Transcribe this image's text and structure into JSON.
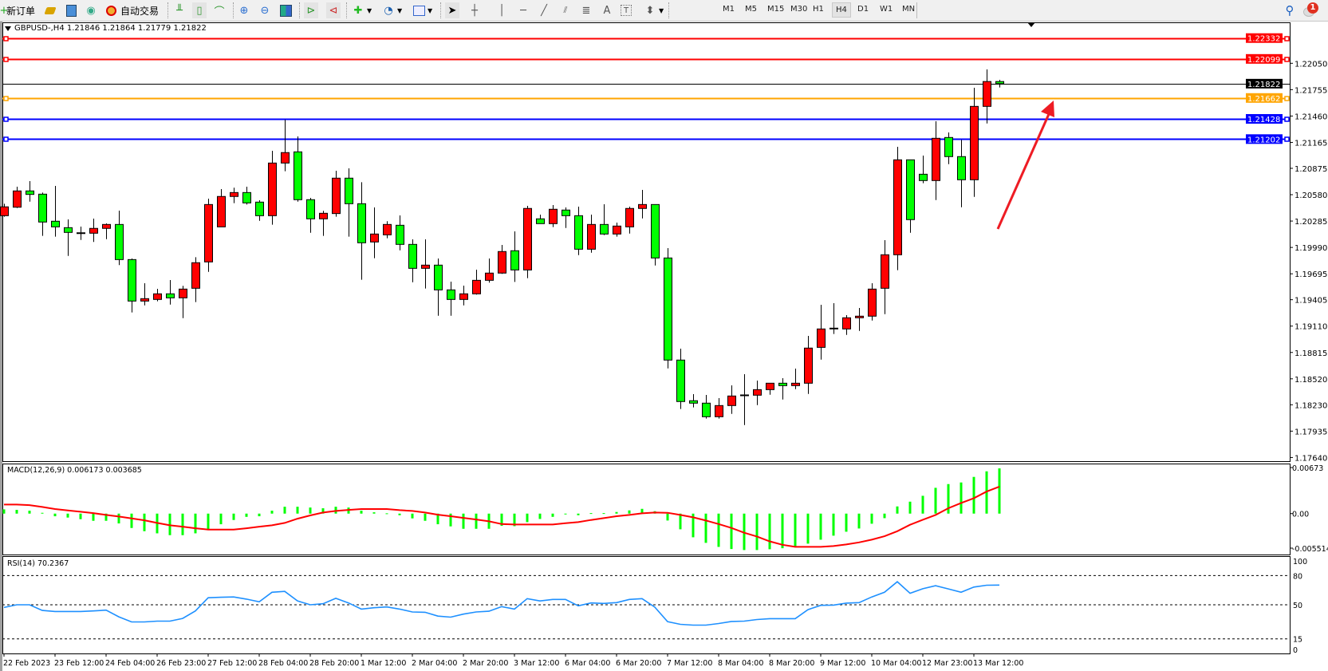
{
  "toolbar": {
    "new_order": "新订单",
    "auto_trading": "自动交易",
    "timeframes": [
      "M1",
      "M5",
      "M15",
      "M30",
      "H1",
      "H4",
      "D1",
      "W1",
      "MN"
    ],
    "active_timeframe": "H4",
    "text_tool": "A",
    "notification_count": "1",
    "icons": [
      "new-order-icon",
      "market-watch-icon",
      "data-window-icon",
      "signals-icon",
      "auto-trading-icon",
      "bar-chart-icon",
      "candlestick-icon",
      "line-chart-icon",
      "zoom-in-icon",
      "zoom-out-icon",
      "tile-windows-icon",
      "chart-shift-icon",
      "autoscroll-icon",
      "indicators-icon",
      "periods-icon",
      "templates-icon",
      "cursor-icon",
      "crosshair-icon",
      "vertical-line-icon",
      "horizontal-line-icon",
      "trendline-icon",
      "fibonacci-fan-icon",
      "fibonacci-lines-icon",
      "text-icon",
      "text-label-icon",
      "arrows-icon",
      "search-icon",
      "notification-icon"
    ]
  },
  "chart": {
    "header": "GBPUSD-,H4  1.21846 1.21864 1.21779 1.21822",
    "macd_label": "MACD(12,26,9) 0.006173 0.003685",
    "rsi_label": "RSI(14) 70.2367"
  },
  "chart_data": [
    {
      "type": "candlestick",
      "symbol": "GBPUSD-",
      "timeframe": "H4",
      "up_color": "#ff0000",
      "down_color": "#00ff00",
      "ylim": [
        1.17599,
        1.22508
      ],
      "y_ticks": [
        "1.22050",
        "1.21755",
        "1.21460",
        "1.21165",
        "1.20875",
        "1.20580",
        "1.20285",
        "1.19990",
        "1.19695",
        "1.19405",
        "1.19110",
        "1.18815",
        "1.18520",
        "1.18230",
        "1.17935",
        "1.17640"
      ],
      "x_labels": [
        {
          "index": 0,
          "label": "22 Feb 2023"
        },
        {
          "index": 4,
          "label": "23 Feb 12:00"
        },
        {
          "index": 8,
          "label": "24 Feb 04:00"
        },
        {
          "index": 12,
          "label": "26 Feb 23:00"
        },
        {
          "index": 16,
          "label": "27 Feb 12:00"
        },
        {
          "index": 20,
          "label": "28 Feb 04:00"
        },
        {
          "index": 24,
          "label": "28 Feb 20:00"
        },
        {
          "index": 28,
          "label": "1 Mar 12:00"
        },
        {
          "index": 32,
          "label": "2 Mar 04:00"
        },
        {
          "index": 36,
          "label": "2 Mar 20:00"
        },
        {
          "index": 40,
          "label": "3 Mar 12:00"
        },
        {
          "index": 44,
          "label": "6 Mar 04:00"
        },
        {
          "index": 48,
          "label": "6 Mar 20:00"
        },
        {
          "index": 52,
          "label": "7 Mar 12:00"
        },
        {
          "index": 56,
          "label": "8 Mar 04:00"
        },
        {
          "index": 60,
          "label": "8 Mar 20:00"
        },
        {
          "index": 64,
          "label": "9 Mar 12:00"
        },
        {
          "index": 68,
          "label": "10 Mar 04:00"
        },
        {
          "index": 72,
          "label": "12 Mar 23:00"
        },
        {
          "index": 76,
          "label": "13 Mar 12:00"
        }
      ],
      "ohlc": [
        [
          1.20345,
          1.20479,
          1.20333,
          1.20444
        ],
        [
          1.2044,
          1.20669,
          1.20431,
          1.20622
        ],
        [
          1.20622,
          1.20732,
          1.20502,
          1.20583
        ],
        [
          1.20586,
          1.20604,
          1.20119,
          1.20274
        ],
        [
          1.20283,
          1.20678,
          1.2011,
          1.2022
        ],
        [
          1.20211,
          1.20303,
          1.19895,
          1.20158
        ],
        [
          1.20154,
          1.20223,
          1.20074,
          1.20149
        ],
        [
          1.20149,
          1.20312,
          1.20051,
          1.20203
        ],
        [
          1.20203,
          1.20259,
          1.20083,
          1.20247
        ],
        [
          1.20247,
          1.20402,
          1.19792,
          1.19854
        ],
        [
          1.19854,
          1.19866,
          1.19262,
          1.1939
        ],
        [
          1.1939,
          1.19589,
          1.19342,
          1.19417
        ],
        [
          1.19408,
          1.19527,
          1.19387,
          1.19471
        ],
        [
          1.19471,
          1.19625,
          1.19351,
          1.19426
        ],
        [
          1.19426,
          1.1956,
          1.19199,
          1.19524
        ],
        [
          1.19533,
          1.19881,
          1.19378,
          1.19819
        ],
        [
          1.19828,
          1.20535,
          1.19717,
          1.2047
        ],
        [
          1.2022,
          1.20643,
          1.2022,
          1.2056
        ],
        [
          1.2056,
          1.20658,
          1.20485,
          1.20604
        ],
        [
          1.20604,
          1.20669,
          1.2047,
          1.20488
        ],
        [
          1.20497,
          1.20518,
          1.20288,
          1.20345
        ],
        [
          1.20345,
          1.21071,
          1.20244,
          1.20934
        ],
        [
          1.20934,
          1.21419,
          1.20842,
          1.21051
        ],
        [
          1.21059,
          1.21232,
          1.20502,
          1.20524
        ],
        [
          1.20524,
          1.20544,
          1.20154,
          1.2031
        ],
        [
          1.2031,
          1.20399,
          1.20119,
          1.20372
        ],
        [
          1.20369,
          1.20848,
          1.20333,
          1.20765
        ],
        [
          1.20765,
          1.20875,
          1.2011,
          1.20479
        ],
        [
          1.20479,
          1.2072,
          1.19628,
          1.20042
        ],
        [
          1.20051,
          1.20437,
          1.19869,
          1.2014
        ],
        [
          1.20131,
          1.20283,
          1.20092,
          1.20247
        ],
        [
          1.20238,
          1.20348,
          1.19958,
          1.20024
        ],
        [
          1.20024,
          1.2008,
          1.19601,
          1.19756
        ],
        [
          1.19756,
          1.2008,
          1.1953,
          1.19792
        ],
        [
          1.19792,
          1.19866,
          1.19226,
          1.19515
        ],
        [
          1.19515,
          1.19607,
          1.19226,
          1.19408
        ],
        [
          1.19408,
          1.19563,
          1.19342,
          1.19471
        ],
        [
          1.19471,
          1.19741,
          1.19462,
          1.19622
        ],
        [
          1.19622,
          1.19866,
          1.19596,
          1.19703
        ],
        [
          1.19703,
          1.20018,
          1.19694,
          1.19944
        ],
        [
          1.19953,
          1.2017,
          1.19604,
          1.19738
        ],
        [
          1.19738,
          1.20455,
          1.19646,
          1.20426
        ],
        [
          1.2031,
          1.20357,
          1.20256,
          1.20256
        ],
        [
          1.20256,
          1.20464,
          1.20217,
          1.20417
        ],
        [
          1.20408,
          1.20437,
          1.20208,
          1.20345
        ],
        [
          1.20345,
          1.20446,
          1.19904,
          1.1997
        ],
        [
          1.1997,
          1.20357,
          1.19931,
          1.20247
        ],
        [
          1.20247,
          1.20473,
          1.20128,
          1.2014
        ],
        [
          1.2014,
          1.20268,
          1.2011,
          1.20229
        ],
        [
          1.2022,
          1.20446,
          1.20145,
          1.20426
        ],
        [
          1.20426,
          1.20634,
          1.20315,
          1.2047
        ],
        [
          1.2047,
          1.2047,
          1.19788,
          1.19872
        ],
        [
          1.19872,
          1.19982,
          1.18637,
          1.1873
        ],
        [
          1.1873,
          1.18857,
          1.18182,
          1.18266
        ],
        [
          1.18275,
          1.18349,
          1.182,
          1.18248
        ],
        [
          1.18248,
          1.1834,
          1.18075,
          1.18096
        ],
        [
          1.18096,
          1.18304,
          1.18075,
          1.18221
        ],
        [
          1.18221,
          1.18447,
          1.18128,
          1.18328
        ],
        [
          1.1834,
          1.18572,
          1.18003,
          1.18333
        ],
        [
          1.18337,
          1.185,
          1.18226,
          1.18399
        ],
        [
          1.18399,
          1.18474,
          1.18342,
          1.18471
        ],
        [
          1.18471,
          1.18527,
          1.18289,
          1.18444
        ],
        [
          1.18444,
          1.18634,
          1.18405,
          1.18471
        ],
        [
          1.18471,
          1.19,
          1.18351,
          1.18864
        ],
        [
          1.18872,
          1.19348,
          1.18735,
          1.19078
        ],
        [
          1.19078,
          1.19366,
          1.19021,
          1.19087
        ],
        [
          1.19078,
          1.19232,
          1.19012,
          1.19203
        ],
        [
          1.19203,
          1.19313,
          1.19056,
          1.19221
        ],
        [
          1.19221,
          1.19589,
          1.19172,
          1.19524
        ],
        [
          1.19533,
          1.20071,
          1.19244,
          1.19908
        ],
        [
          1.19908,
          1.21116,
          1.19735,
          1.2097
        ],
        [
          1.2097,
          1.2097,
          1.20154,
          1.20301
        ],
        [
          1.20809,
          1.21017,
          1.20708,
          1.20738
        ],
        [
          1.20738,
          1.21401,
          1.2052,
          1.21211
        ],
        [
          1.2122,
          1.21276,
          1.20922,
          1.21006
        ],
        [
          1.21006,
          1.21193,
          1.2044,
          1.20747
        ],
        [
          1.20747,
          1.21776,
          1.20556,
          1.21568
        ],
        [
          1.21568,
          1.21981,
          1.21377,
          1.21846
        ],
        [
          1.21846,
          1.21864,
          1.21779,
          1.21822
        ]
      ],
      "hlines": [
        {
          "price": "1.22332",
          "color": "#ff0000"
        },
        {
          "price": "1.22099",
          "color": "#ff0000"
        },
        {
          "price": "1.21822",
          "color": "#000000"
        },
        {
          "price": "1.21662",
          "color": "#ffa500"
        },
        {
          "price": "1.21428",
          "color": "#0000ff"
        },
        {
          "price": "1.21202",
          "color": "#0000ff"
        }
      ]
    },
    {
      "type": "bar",
      "indicator": "MACD(12,26,9)",
      "ylim": [
        -0.00558,
        0.00683
      ],
      "y_ticks": [
        "0.00673",
        "0.00",
        "-0.005514"
      ],
      "histogram_color": "#00ff00",
      "signal_color": "#ff0000",
      "main": [
        0.00058,
        0.00051,
        0.0004,
        0.00011,
        -0.00036,
        -0.00054,
        -0.00076,
        -0.00098,
        -0.00098,
        -0.00134,
        -0.00196,
        -0.0024,
        -0.00269,
        -0.00294,
        -0.00294,
        -0.00269,
        -0.00218,
        -0.00145,
        -0.00087,
        -0.00044,
        -0.00036,
        0.0004,
        0.00094,
        0.00094,
        0.00083,
        0.00073,
        0.00094,
        0.00083,
        0.0004,
        0.00018,
        4e-05,
        -0.00022,
        -0.00065,
        -0.00098,
        -0.00145,
        -0.00174,
        -0.00207,
        -0.00207,
        -0.00207,
        -0.00167,
        -0.00171,
        -0.00116,
        -0.00073,
        -0.00044,
        -7e-05,
        -0.00022,
        7e-05,
        7e-05,
        0.00022,
        0.00044,
        0.00065,
        0.00033,
        -0.00094,
        -0.00214,
        -0.00323,
        -0.00399,
        -0.00454,
        -0.00483,
        -0.00497,
        -0.00497,
        -0.00486,
        -0.00472,
        -0.00454,
        -0.0041,
        -0.00356,
        -0.00301,
        -0.00247,
        -0.00203,
        -0.00138,
        -0.00062,
        0.00098,
        0.00163,
        0.00243,
        0.00352,
        0.00403,
        0.00425,
        0.00501,
        0.00577,
        0.006173
      ],
      "signal": [
        0.00123,
        0.00123,
        0.00116,
        0.00091,
        0.00062,
        0.00044,
        0.00025,
        7e-05,
        -0.00018,
        -0.0004,
        -0.00065,
        -0.00091,
        -0.00127,
        -0.0016,
        -0.00178,
        -0.002,
        -0.00218,
        -0.00218,
        -0.00218,
        -0.002,
        -0.00178,
        -0.0016,
        -0.00127,
        -0.00069,
        -0.00025,
        0.00015,
        0.00036,
        0.00051,
        0.00062,
        0.00062,
        0.00062,
        0.00047,
        0.00036,
        0.00015,
        -0.00015,
        -0.00036,
        -0.00058,
        -0.0008,
        -0.00105,
        -0.00142,
        -0.00149,
        -0.00149,
        -0.00149,
        -0.00149,
        -0.00131,
        -0.00116,
        -0.00087,
        -0.00062,
        -0.00036,
        -0.00018,
        4e-05,
        0.00015,
        0.00011,
        -0.00018,
        -0.00051,
        -0.00094,
        -0.00142,
        -0.00196,
        -0.00261,
        -0.00312,
        -0.00378,
        -0.00425,
        -0.00454,
        -0.00454,
        -0.00454,
        -0.00443,
        -0.00421,
        -0.00392,
        -0.00356,
        -0.00309,
        -0.0024,
        -0.00152,
        -0.00083,
        -0.00018,
        0.00073,
        0.00145,
        0.00211,
        0.00301,
        0.003685
      ]
    },
    {
      "type": "line",
      "indicator": "RSI(14)",
      "ylim": [
        0,
        100
      ],
      "y_ticks": [
        "100",
        "80",
        "50",
        "15",
        "0"
      ],
      "levels": [
        80,
        50,
        15
      ],
      "color": "#1e90ff",
      "values": [
        47.2,
        50,
        50,
        44.2,
        43.1,
        43.1,
        43.1,
        43.7,
        44.5,
        37.6,
        32.4,
        32.4,
        33.2,
        33.2,
        36,
        43.7,
        57.2,
        57.7,
        58,
        55.8,
        53,
        62.9,
        63.8,
        53.9,
        50,
        51.1,
        56.6,
        51.9,
        45.6,
        47,
        47.8,
        45.6,
        42.6,
        42.3,
        38.4,
        37.3,
        40.4,
        42.6,
        43.4,
        48.1,
        45.6,
        56.3,
        53.9,
        55.5,
        55.5,
        48.9,
        51.9,
        51.4,
        52.2,
        55.5,
        56.3,
        47.5,
        32.6,
        29.9,
        29.1,
        29.1,
        30.7,
        32.9,
        33.2,
        34.8,
        35.7,
        35.7,
        35.7,
        45,
        49.4,
        49.7,
        51.7,
        52.2,
        58,
        62.9,
        73.7,
        61.8,
        66.5,
        69.6,
        66.3,
        62.9,
        68.2,
        70.1,
        70.24
      ]
    }
  ]
}
